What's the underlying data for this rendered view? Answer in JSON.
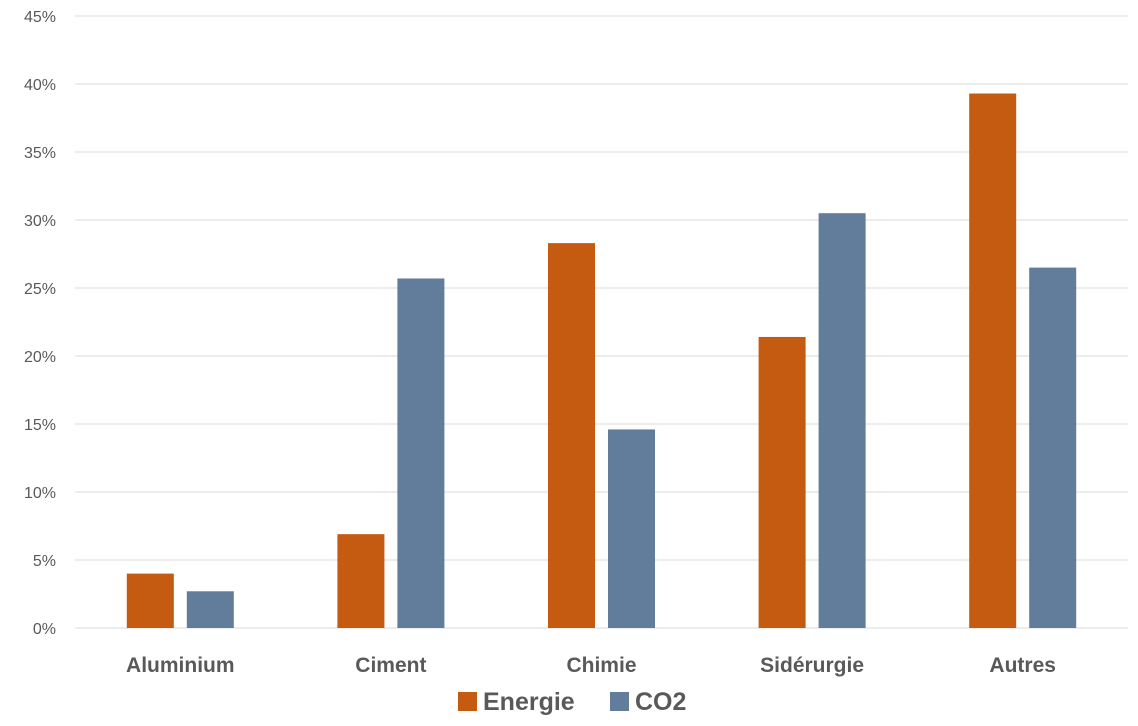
{
  "chart_data": {
    "type": "bar",
    "title": "",
    "xlabel": "",
    "ylabel": "",
    "categories": [
      "Aluminium",
      "Ciment",
      "Chimie",
      "Sidérurgie",
      "Autres"
    ],
    "series": [
      {
        "name": "Energie",
        "color": "#c55a11",
        "values": [
          4.0,
          6.9,
          28.3,
          21.4,
          39.3
        ]
      },
      {
        "name": "CO2",
        "color": "#627c9b",
        "values": [
          2.7,
          25.7,
          14.6,
          30.5,
          26.5
        ]
      }
    ],
    "ylim": [
      0,
      45
    ],
    "yticks": [
      0,
      5,
      10,
      15,
      20,
      25,
      30,
      35,
      40,
      45
    ],
    "y_unit": "%",
    "grid": true,
    "legend_position": "bottom"
  }
}
